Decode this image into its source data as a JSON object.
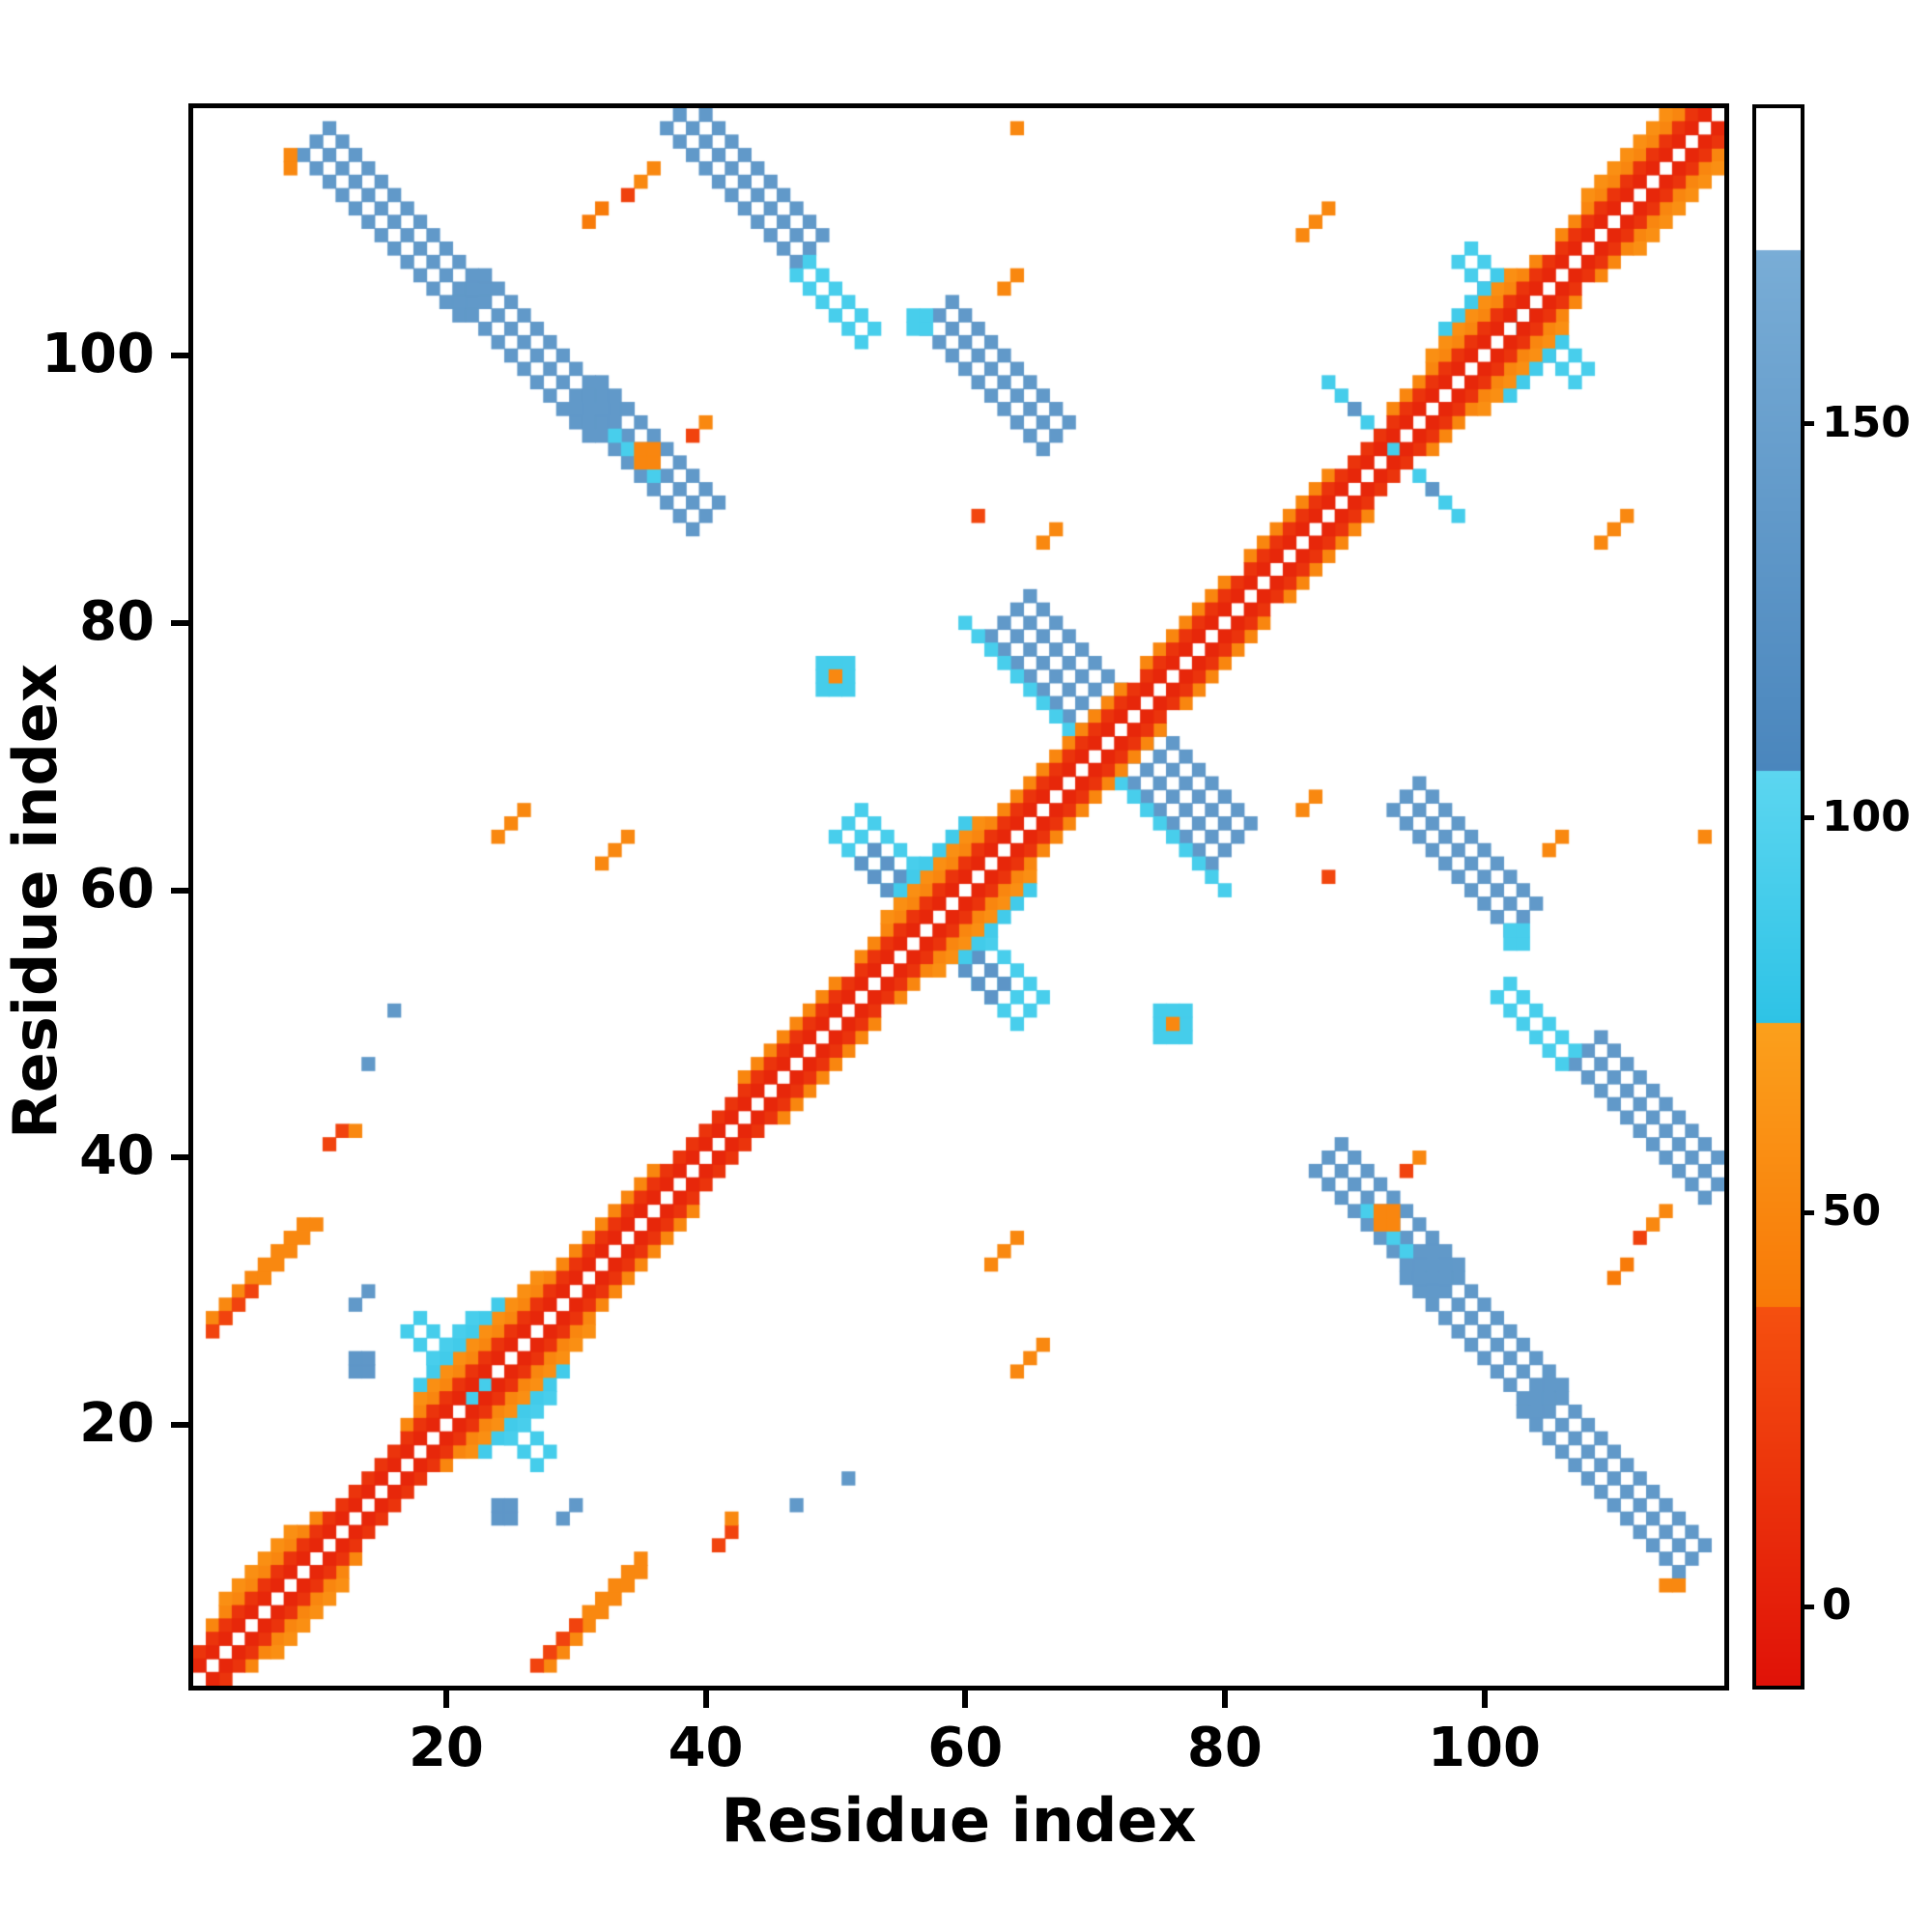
{
  "figure": {
    "background": "#ffffff"
  },
  "axes": {
    "xlabel": "Residue index",
    "ylabel": "Residue index",
    "xticks": [
      20,
      40,
      60,
      80,
      100
    ],
    "yticks": [
      20,
      40,
      60,
      80,
      100
    ],
    "xlim": [
      1,
      118
    ],
    "ylim": [
      1,
      118
    ]
  },
  "colorbar": {
    "ticks": [
      0,
      50,
      100,
      150
    ],
    "vmin": -10,
    "vmax": 190
  },
  "chart_data": {
    "type": "heatmap",
    "title": "",
    "xlabel": "Residue index",
    "ylabel": "Residue index",
    "n_residues": 118,
    "symmetric": true,
    "xlim": [
      1,
      118
    ],
    "ylim": [
      1,
      118
    ],
    "grid": false,
    "background_color": "#ffffff",
    "colormap_bands": [
      {
        "from": -10,
        "to": 38,
        "c1": "#e01208",
        "c2": "#f5500f"
      },
      {
        "from": 38,
        "to": 74,
        "c1": "#f87908",
        "c2": "#fba01c"
      },
      {
        "from": 74,
        "to": 106,
        "c1": "#2ec3e6",
        "c2": "#5cd6f0"
      },
      {
        "from": 106,
        "to": 172,
        "c1": "#4a86bd",
        "c2": "#79add6"
      },
      {
        "from": 172,
        "to": 190,
        "c1": "#ffffff",
        "c2": "#ffffff"
      }
    ],
    "features": [
      {
        "kind": "anti",
        "x": 9,
        "y": 115,
        "n": 13,
        "w": 3,
        "v": 138
      },
      {
        "kind": "anti",
        "x": 21,
        "y": 104,
        "n": 11,
        "w": 3,
        "v": 138
      },
      {
        "kind": "anti",
        "x": 30,
        "y": 96,
        "n": 10,
        "w": 3,
        "v": 138
      },
      {
        "kind": "anti",
        "x": 37,
        "y": 117,
        "n": 11,
        "w": 3,
        "v": 138
      },
      {
        "kind": "anti",
        "x": 47,
        "y": 106,
        "n": 6,
        "w": 2,
        "v": 92
      },
      {
        "kind": "anti",
        "x": 57,
        "y": 102,
        "n": 10,
        "w": 3,
        "v": 138
      },
      {
        "kind": "anti",
        "x": 62,
        "y": 79,
        "n": 8,
        "w": 4,
        "v": 138
      },
      {
        "kind": "anti",
        "x": 60,
        "y": 80,
        "n": 10,
        "w": 1,
        "v": 92
      },
      {
        "kind": "anti",
        "x": 50,
        "y": 64,
        "n": 7,
        "w": 3,
        "v": 92
      },
      {
        "kind": "anti",
        "x": 52,
        "y": 62,
        "n": 4,
        "w": 2,
        "v": 132
      },
      {
        "kind": "anti",
        "x": 17,
        "y": 27,
        "n": 7,
        "w": 2,
        "v": 90
      },
      {
        "kind": "anti",
        "x": 98,
        "y": 107,
        "n": 6,
        "w": 2,
        "v": 92
      },
      {
        "kind": "anti",
        "x": 88,
        "y": 98,
        "n": 6,
        "w": 1,
        "v": 90
      },
      {
        "kind": "anti",
        "x": 33,
        "y": 94,
        "n": 4,
        "w": 1,
        "v": 92
      },
      {
        "kind": "rect",
        "x": 56,
        "y": 102,
        "w": 2,
        "h": 2,
        "v": 92
      },
      {
        "kind": "rect",
        "x": 13,
        "y": 24,
        "w": 2,
        "h": 2,
        "v": 135
      },
      {
        "kind": "rect",
        "x": 100,
        "y": 105,
        "w": 2,
        "h": 1,
        "v": 132
      },
      {
        "kind": "rect",
        "x": 90,
        "y": 96,
        "w": 1,
        "h": 1,
        "v": 135
      },
      {
        "kind": "rect",
        "x": 49,
        "y": 75,
        "w": 3,
        "h": 3,
        "v": 90
      },
      {
        "kind": "rect",
        "x": 8,
        "y": 114,
        "w": 1,
        "h": 2,
        "v": 52
      },
      {
        "kind": "rect",
        "x": 35,
        "y": 92,
        "w": 2,
        "h": 2,
        "v": 50
      },
      {
        "kind": "rect",
        "x": 50,
        "y": 76,
        "w": 1,
        "h": 1,
        "v": 52
      },
      {
        "kind": "par",
        "x": 2,
        "y": 28,
        "n": 8,
        "w": 2,
        "v": 52
      },
      {
        "kind": "par",
        "x": 2,
        "y": 27,
        "n": 4,
        "w": 1,
        "v": 28
      },
      {
        "kind": "par",
        "x": 24,
        "y": 64,
        "n": 3,
        "w": 1,
        "v": 52
      },
      {
        "kind": "par",
        "x": 32,
        "y": 62,
        "n": 3,
        "w": 1,
        "v": 52
      },
      {
        "kind": "par",
        "x": 86,
        "y": 109,
        "n": 3,
        "w": 1,
        "v": 52
      },
      {
        "kind": "par",
        "x": 63,
        "y": 105,
        "n": 2,
        "w": 1,
        "v": 52
      },
      {
        "kind": "par",
        "x": 35,
        "y": 113,
        "n": 2,
        "w": 1,
        "v": 52
      },
      {
        "kind": "rect",
        "x": 34,
        "y": 112,
        "w": 1,
        "h": 1,
        "v": 26
      },
      {
        "kind": "par",
        "x": 11,
        "y": 41,
        "n": 2,
        "w": 1,
        "v": 28
      },
      {
        "kind": "rect",
        "x": 13,
        "y": 42,
        "w": 1,
        "h": 1,
        "v": 52
      },
      {
        "kind": "rect",
        "x": 64,
        "y": 117,
        "w": 1,
        "h": 1,
        "v": 52
      },
      {
        "kind": "rect",
        "x": 16,
        "y": 51,
        "w": 1,
        "h": 1,
        "v": 138
      },
      {
        "kind": "par",
        "x": 13,
        "y": 29,
        "n": 2,
        "w": 1,
        "v": 138
      },
      {
        "kind": "rect",
        "x": 14,
        "y": 47,
        "w": 1,
        "h": 1,
        "v": 138
      },
      {
        "kind": "rect",
        "x": 61,
        "y": 88,
        "w": 1,
        "h": 1,
        "v": 30
      },
      {
        "kind": "par",
        "x": 66,
        "y": 86,
        "n": 2,
        "w": 1,
        "v": 52
      },
      {
        "kind": "rect",
        "x": 39,
        "y": 94,
        "w": 1,
        "h": 1,
        "v": 28
      },
      {
        "kind": "rect",
        "x": 40,
        "y": 95,
        "w": 1,
        "h": 1,
        "v": 52
      },
      {
        "kind": "par",
        "x": 31,
        "y": 110,
        "n": 2,
        "w": 1,
        "v": 40
      },
      {
        "kind": "diag",
        "i0": 2,
        "i1": 10,
        "off": 3,
        "v": 50
      },
      {
        "kind": "diag",
        "i0": 3,
        "i1": 8,
        "off": 4,
        "v": 58
      },
      {
        "kind": "diag",
        "i0": 17,
        "i1": 30,
        "off": 3,
        "v": 50
      },
      {
        "kind": "diag",
        "i0": 18,
        "i1": 27,
        "off": 4,
        "v": 58
      },
      {
        "kind": "diag",
        "i0": 18,
        "i1": 24,
        "off": 5,
        "v": 88
      },
      {
        "kind": "diag",
        "i0": 19,
        "i1": 22,
        "off": 6,
        "v": 92
      },
      {
        "kind": "diag",
        "i0": 30,
        "i1": 36,
        "off": 3,
        "v": 50
      },
      {
        "kind": "diag",
        "i0": 43,
        "i1": 50,
        "off": 3,
        "v": 50
      },
      {
        "kind": "diag",
        "i0": 52,
        "i1": 64,
        "off": 3,
        "v": 50
      },
      {
        "kind": "diag",
        "i0": 54,
        "i1": 61,
        "off": 4,
        "v": 58
      },
      {
        "kind": "diag",
        "i0": 55,
        "i1": 60,
        "off": 5,
        "v": 88
      },
      {
        "kind": "diag",
        "i0": 65,
        "i1": 72,
        "off": 3,
        "v": 50
      },
      {
        "kind": "diag",
        "i0": 74,
        "i1": 80,
        "off": 3,
        "v": 50
      },
      {
        "kind": "diag",
        "i0": 82,
        "i1": 88,
        "off": 3,
        "v": 50
      },
      {
        "kind": "diag",
        "i0": 93,
        "i1": 104,
        "off": 3,
        "v": 50
      },
      {
        "kind": "diag",
        "i0": 96,
        "i1": 102,
        "off": 4,
        "v": 58
      },
      {
        "kind": "diag",
        "i0": 97,
        "i1": 101,
        "off": 5,
        "v": 88
      },
      {
        "kind": "diag",
        "i0": 106,
        "i1": 116,
        "off": 3,
        "v": 50
      },
      {
        "kind": "diag",
        "i0": 108,
        "i1": 114,
        "off": 4,
        "v": 58
      },
      {
        "kind": "diag",
        "i0": 1,
        "i1": 116,
        "off": 2,
        "v": 16
      },
      {
        "kind": "diag",
        "i0": 1,
        "i1": 117,
        "off": 1,
        "v": 6
      }
    ]
  }
}
